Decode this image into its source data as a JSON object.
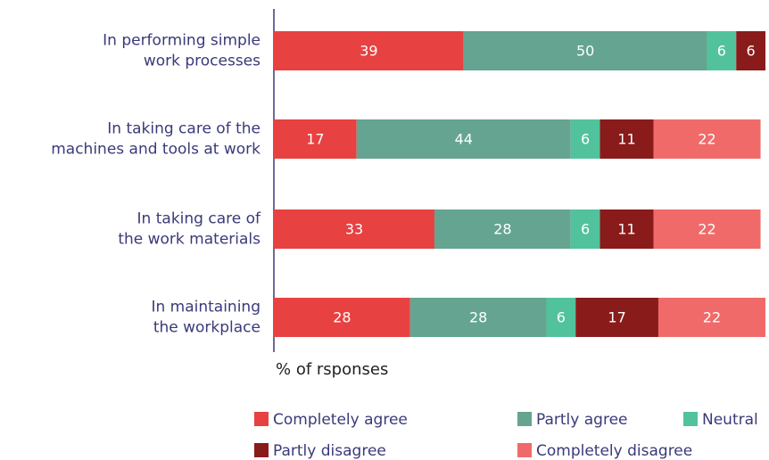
{
  "chart_data": {
    "type": "stacked-bar-horizontal",
    "categories": [
      "In performing simple\nwork processes",
      "In taking care of the\nmachines and tools at work",
      "In taking care of\nthe work materials",
      "In maintaining\nthe workplace"
    ],
    "series": [
      {
        "name": "Completely agree",
        "color": "#e84141",
        "values": [
          39,
          17,
          33,
          28
        ]
      },
      {
        "name": "Partly agree",
        "color": "#64a491",
        "values": [
          50,
          44,
          28,
          28
        ]
      },
      {
        "name": "Neutral",
        "color": "#52c29d",
        "values": [
          6,
          6,
          6,
          6
        ]
      },
      {
        "name": "Partly disagree",
        "color": "#8a1b1b",
        "values": [
          6,
          11,
          11,
          17
        ]
      },
      {
        "name": "Completely disagree",
        "color": "#f06a6a",
        "values": [
          null,
          22,
          22,
          22
        ]
      }
    ],
    "xlabel": "% of rsponses",
    "xlim": [
      0,
      101
    ]
  }
}
